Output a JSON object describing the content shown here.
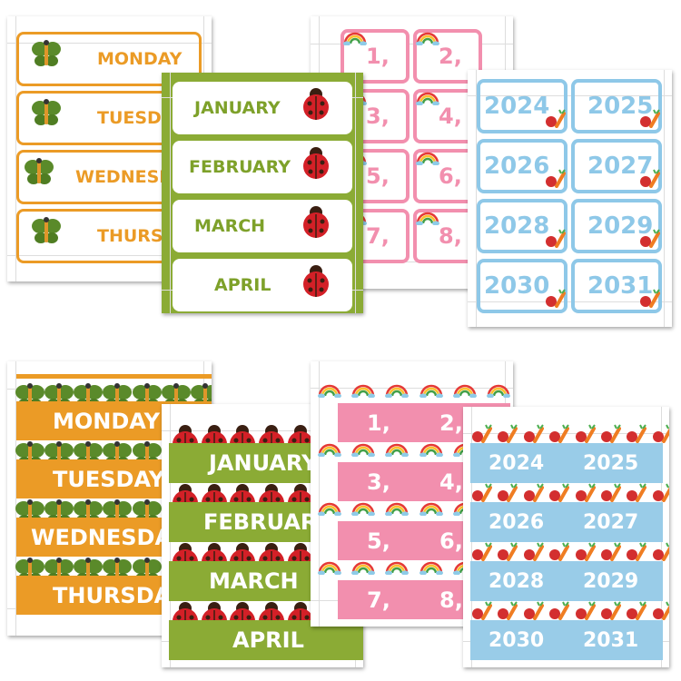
{
  "top": {
    "days": [
      "MONDAY",
      "TUESDAY",
      "WEDNESDAY",
      "THURSDAY"
    ],
    "months": [
      "JANUARY",
      "FEBRUARY",
      "MARCH",
      "APRIL"
    ],
    "dates": [
      "1,",
      "2,",
      "3,",
      "4,",
      "5,",
      "6,",
      "7,",
      "8,"
    ],
    "years": [
      2024,
      2025,
      2026,
      2027,
      2028,
      2029,
      2030,
      2031
    ]
  },
  "bottom": {
    "days": [
      "MONDAY",
      "TUESDAY",
      "WEDNESDAY",
      "THURSDAY"
    ],
    "months": [
      "JANUARY",
      "FEBRUARY",
      "MARCH",
      "APRIL"
    ],
    "dates": [
      "1,",
      "2,",
      "3,",
      "4,",
      "5,",
      "6,",
      "7,",
      "8,"
    ],
    "years": [
      2024,
      2025,
      2026,
      2027,
      2028,
      2029,
      2030,
      2031
    ]
  }
}
